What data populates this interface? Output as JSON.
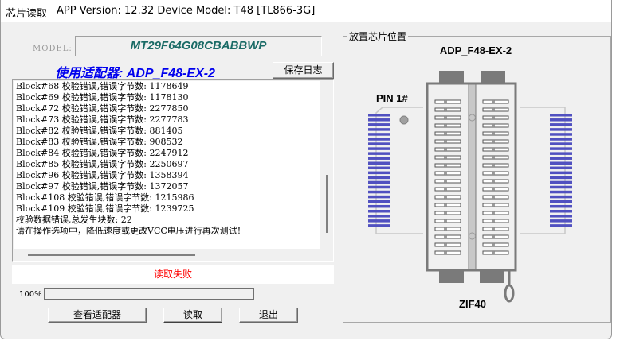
{
  "window": {
    "title": "芯片读取",
    "version_info": "APP Version: 12.32 Device Model: T48 [TL866-3G]"
  },
  "model": {
    "label": "MODEL:",
    "value": "MT29F64G08CBABBWP"
  },
  "adapter_text": "使用适配器: ADP_F48-EX-2",
  "save_log_button": "保存日志",
  "log_lines": [
    "Block#68 校验错误,错误字节数: 1178649",
    "Block#69 校验错误,错误字节数: 1178130",
    "Block#72 校验错误,错误字节数: 2277850",
    "Block#73 校验错误,错误字节数: 2277783",
    "Block#82 校验错误,错误字节数: 881405",
    "Block#83 校验错误,错误字节数: 908532",
    "Block#84 校验错误,错误字节数: 2247912",
    "Block#85 校验错误,错误字节数: 2250697",
    "Block#96 校验错误,错误字节数: 1358394",
    "Block#97 校验错误,错误字节数: 1372057",
    "Block#108 校验错误,错误字节数: 1215986",
    "Block#109 校验错误,错误字节数: 1239725",
    "校验数据错误,总发生块数: 22",
    "请在操作选项中，降低速度或更改VCC电压进行再次测试!"
  ],
  "status_text": "读取失败",
  "status_color": "#ff0000",
  "progress": {
    "label": "100%",
    "percent": 100
  },
  "buttons": {
    "view_adapter": "查看适配器",
    "read": "读取",
    "exit": "退出"
  },
  "chip_panel": {
    "title": "放置芯片位置",
    "adapter_name": "ADP_F48-EX-2",
    "pin1_label": "PIN 1#",
    "socket_label": "ZIF40",
    "pins_per_side": 24,
    "socket_rows": 20,
    "pin_color": "#5050c0"
  }
}
